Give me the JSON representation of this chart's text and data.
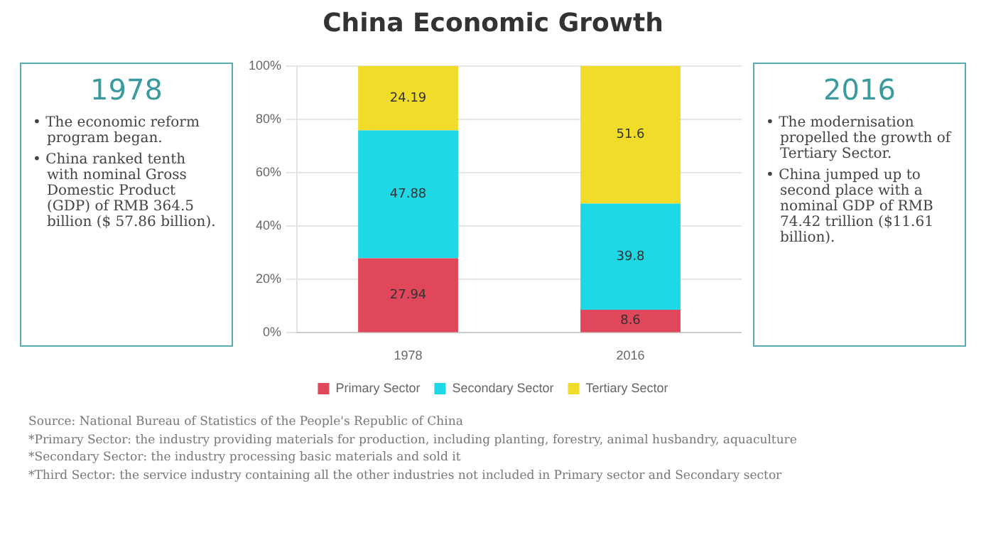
{
  "chart_data": {
    "type": "bar",
    "title": "China Economic Growth",
    "categories": [
      "1978",
      "2016"
    ],
    "stacked": true,
    "series": [
      {
        "name": "Primary Sector",
        "color": "#e0475a",
        "values": [
          27.94,
          8.6
        ]
      },
      {
        "name": "Secondary Sector",
        "color": "#1ed8e6",
        "values": [
          47.88,
          39.8
        ]
      },
      {
        "name": "Tertiary Sector",
        "color": "#f2dc2a",
        "values": [
          24.19,
          51.6
        ]
      }
    ],
    "ylim": [
      0,
      100
    ],
    "yticks": [
      {
        "value": 0,
        "label": "0%"
      },
      {
        "value": 20,
        "label": "20%"
      },
      {
        "value": 40,
        "label": "40%"
      },
      {
        "value": 60,
        "label": "60%"
      },
      {
        "value": 80,
        "label": "80%"
      },
      {
        "value": 100,
        "label": "100%"
      }
    ],
    "grid": "y",
    "legend": "bottom",
    "data_labels": true,
    "annotations": [
      "1978",
      "• The economic reform program began.",
      "• China ranked tenth with nominal Gross Domestic Product (GDP) of RMB 364.5 billion ($ 57.86 billion).",
      "2016",
      "• The modernisation propelled the growth of Tertiary Sector.",
      "• China jumped up to second place with a nominal GDP of RMB 74.42 trillion ($11.61 billion).",
      "Source: National Bureau of Statistics of the People's Republic of China",
      "*Primary Sector: the industry providing materials for production, including planting, forestry, animal husbandry, aquaculture",
      "*Secondary Sector: the industry processing basic materials and sold it",
      "*Third Sector: the service industry containing all the other industries not included in Primary sector and Secondary sector"
    ]
  }
}
